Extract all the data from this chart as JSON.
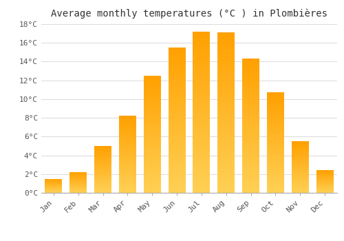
{
  "title": "Average monthly temperatures (°C ) in Plombières",
  "months": [
    "Jan",
    "Feb",
    "Mar",
    "Apr",
    "May",
    "Jun",
    "Jul",
    "Aug",
    "Sep",
    "Oct",
    "Nov",
    "Dec"
  ],
  "values": [
    1.5,
    2.2,
    5.0,
    8.2,
    12.5,
    15.5,
    17.2,
    17.1,
    14.3,
    10.7,
    5.5,
    2.4
  ],
  "bar_color_main": "#FFAA00",
  "bar_color_light": "#FFD555",
  "ylim": [
    0,
    18
  ],
  "yticks": [
    0,
    2,
    4,
    6,
    8,
    10,
    12,
    14,
    16,
    18
  ],
  "ytick_labels": [
    "0°C",
    "2°C",
    "4°C",
    "6°C",
    "8°C",
    "10°C",
    "12°C",
    "14°C",
    "16°C",
    "18°C"
  ],
  "bg_color": "#ffffff",
  "grid_color": "#dddddd",
  "title_fontsize": 10,
  "tick_fontsize": 8,
  "font_family": "monospace",
  "bar_width": 0.7
}
